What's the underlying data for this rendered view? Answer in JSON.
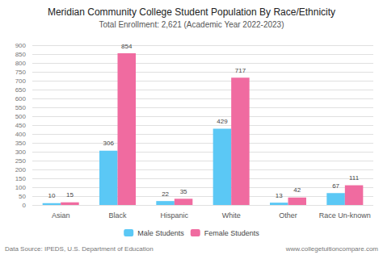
{
  "chart_data": {
    "type": "bar",
    "title": "Meridian Community College Student Population By Race/Ethnicity",
    "subtitle": "Total Enrollment: 2,621 (Academic Year 2022-2023)",
    "categories": [
      "Asian",
      "Black",
      "Hispanic",
      "White",
      "Other",
      "Race Un-known"
    ],
    "series": [
      {
        "name": "Male Students",
        "color": "#5BC8F5",
        "values": [
          10,
          306,
          22,
          429,
          13,
          67
        ]
      },
      {
        "name": "Female Students",
        "color": "#F06BA0",
        "values": [
          15,
          854,
          35,
          717,
          42,
          111
        ]
      }
    ],
    "ylim": [
      0,
      900
    ],
    "yticks": [
      0,
      50,
      100,
      150,
      200,
      250,
      300,
      350,
      400,
      450,
      500,
      550,
      600,
      650,
      700,
      750,
      800,
      850,
      900
    ],
    "grid": true,
    "data_labels": true,
    "legend": "bottom",
    "annotations": [
      "Data Source: IPEDS, U.S. Department of Education",
      "www.collegetuitioncompare.com"
    ]
  }
}
